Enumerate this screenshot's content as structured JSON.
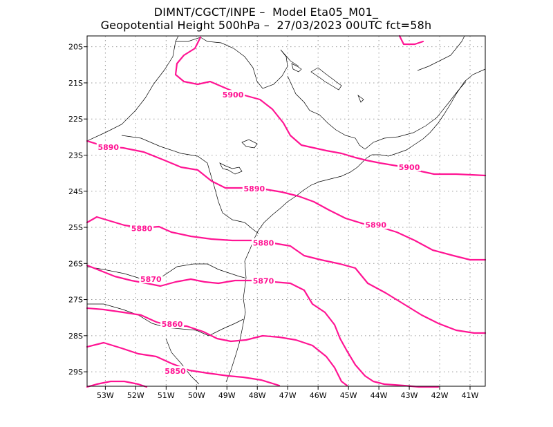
{
  "title": {
    "line1": "DIMNT/CGCT/INPE –  Model Eta05_M01_",
    "line2": "Geopotential Height 500hPa –  27/03/2023 00UTC fct=58h"
  },
  "map": {
    "lon_range": [
      -53.6,
      -40.5
    ],
    "lat_range": [
      -29.4,
      -19.7
    ],
    "lon_ticks": [
      "53W",
      "52W",
      "51W",
      "50W",
      "49W",
      "48W",
      "47W",
      "46W",
      "45W",
      "44W",
      "43W",
      "42W",
      "41W"
    ],
    "lat_ticks": [
      "20S",
      "21S",
      "22S",
      "23S",
      "24S",
      "25S",
      "26S",
      "27S",
      "28S",
      "29S"
    ],
    "grid": true
  },
  "contours": [
    {
      "value": "5900",
      "label_positions": [
        [
          -48.8,
          -21.35
        ],
        [
          -43.0,
          -23.35
        ]
      ]
    },
    {
      "value": "5890",
      "label_positions": [
        [
          -52.9,
          -22.8
        ],
        [
          -48.1,
          -23.95
        ],
        [
          -44.1,
          -24.95
        ]
      ]
    },
    {
      "value": "5880",
      "label_positions": [
        [
          -51.8,
          -25.05
        ],
        [
          -47.8,
          -25.45
        ]
      ]
    },
    {
      "value": "5870",
      "label_positions": [
        [
          -51.5,
          -26.45
        ],
        [
          -47.8,
          -26.5
        ]
      ]
    },
    {
      "value": "5860",
      "label_positions": [
        [
          -50.8,
          -27.7
        ]
      ]
    },
    {
      "value": "5850",
      "label_positions": [
        [
          -50.7,
          -29.0
        ]
      ]
    }
  ],
  "colors": {
    "contour": "#ff1493",
    "coast": "#000000",
    "grid": "#999999"
  }
}
